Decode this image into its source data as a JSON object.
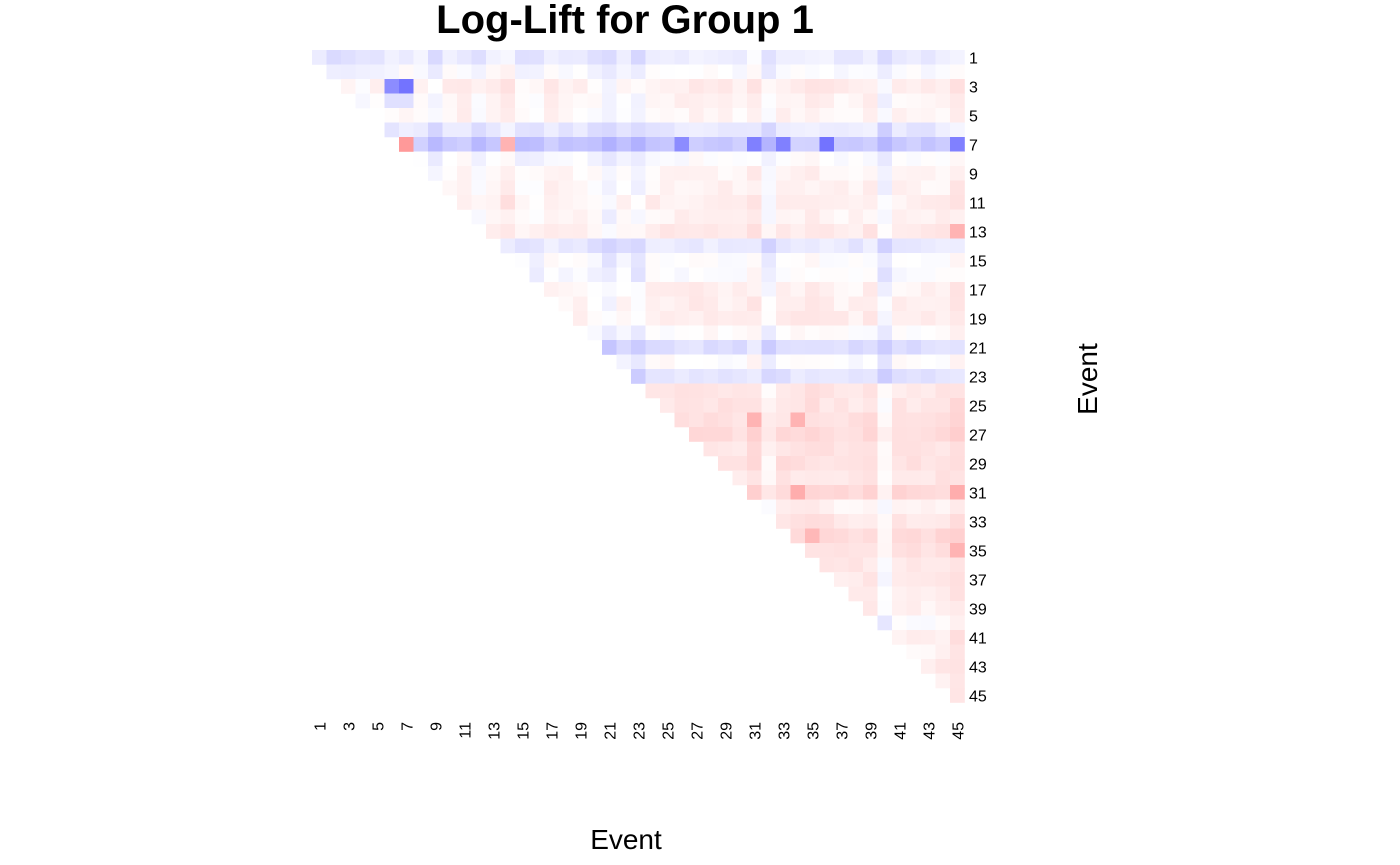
{
  "chart_data": {
    "type": "heatmap",
    "title": "Log-Lift for Group 1",
    "xlabel": "Event",
    "ylabel": "Event",
    "x_tick_labels": [
      "1",
      "3",
      "5",
      "7",
      "9",
      "11",
      "13",
      "15",
      "17",
      "19",
      "21",
      "23",
      "25",
      "27",
      "29",
      "31",
      "33",
      "35",
      "37",
      "39",
      "41",
      "43",
      "45"
    ],
    "y_tick_labels": [
      "1",
      "3",
      "5",
      "7",
      "9",
      "11",
      "13",
      "15",
      "17",
      "19",
      "21",
      "23",
      "25",
      "27",
      "29",
      "31",
      "33",
      "35",
      "37",
      "39",
      "41",
      "43",
      "45"
    ],
    "n_events": 45,
    "shape": "upper-triangle",
    "colors": {
      "negative": "#0000ff",
      "positive": "#ff0000",
      "neutral": "#ffffff"
    },
    "value_scale": "log-lift; blue = negative, red = positive, values normalized to [-1, 1]",
    "row_bias": {
      "1": -0.15,
      "2": -0.05,
      "3": 0.08,
      "4": 0.04,
      "5": 0.03,
      "6": -0.18,
      "7": -0.38,
      "8": -0.05,
      "9": 0.03,
      "10": 0.04,
      "11": 0.07,
      "12": 0.04,
      "13": 0.1,
      "14": -0.18,
      "15": -0.04,
      "16": -0.05,
      "17": 0.05,
      "18": 0.06,
      "19": 0.08,
      "20": -0.03,
      "21": -0.25,
      "22": -0.03,
      "23": -0.22,
      "24": 0.12,
      "25": 0.13,
      "26": 0.16,
      "27": 0.2,
      "28": 0.13,
      "29": 0.16,
      "30": 0.12,
      "31": 0.22,
      "32": 0.05,
      "33": 0.12,
      "34": 0.22,
      "35": 0.16,
      "36": 0.12,
      "37": 0.1,
      "38": 0.08,
      "39": 0.06,
      "40": -0.05,
      "41": 0.08,
      "42": 0.05,
      "43": 0.08,
      "44": 0.06,
      "45": 0.05
    },
    "col_bias": {
      "1": 0.0,
      "2": -0.05,
      "3": -0.05,
      "4": -0.05,
      "5": 0.0,
      "6": 0.03,
      "7": 0.05,
      "8": 0.04,
      "9": -0.08,
      "10": 0.03,
      "11": 0.05,
      "12": -0.04,
      "13": 0.05,
      "14": 0.1,
      "15": -0.02,
      "16": -0.04,
      "17": 0.04,
      "18": 0.02,
      "19": 0.02,
      "20": -0.02,
      "21": -0.12,
      "22": 0.0,
      "23": -0.1,
      "24": 0.03,
      "25": 0.04,
      "26": 0.04,
      "27": 0.06,
      "28": 0.05,
      "29": 0.04,
      "30": 0.03,
      "31": 0.08,
      "32": -0.08,
      "33": 0.04,
      "34": 0.05,
      "35": 0.07,
      "36": 0.05,
      "37": 0.03,
      "38": 0.02,
      "39": 0.05,
      "40": -0.12,
      "41": 0.03,
      "42": 0.03,
      "43": 0.02,
      "44": 0.04,
      "45": 0.1
    },
    "highlight_cells": [
      {
        "row": 3,
        "col": 6,
        "value": -0.45
      },
      {
        "row": 3,
        "col": 7,
        "value": -0.55
      },
      {
        "row": 4,
        "col": 6,
        "value": -0.12
      },
      {
        "row": 4,
        "col": 7,
        "value": -0.12
      },
      {
        "row": 7,
        "col": 7,
        "value": 0.4
      },
      {
        "row": 7,
        "col": 14,
        "value": 0.3
      },
      {
        "row": 7,
        "col": 26,
        "value": -0.45
      },
      {
        "row": 7,
        "col": 31,
        "value": -0.5
      },
      {
        "row": 7,
        "col": 33,
        "value": -0.5
      },
      {
        "row": 7,
        "col": 36,
        "value": -0.55
      },
      {
        "row": 7,
        "col": 45,
        "value": -0.5
      },
      {
        "row": 13,
        "col": 45,
        "value": 0.3
      },
      {
        "row": 26,
        "col": 31,
        "value": 0.3
      },
      {
        "row": 26,
        "col": 34,
        "value": 0.3
      },
      {
        "row": 31,
        "col": 34,
        "value": 0.32
      },
      {
        "row": 31,
        "col": 45,
        "value": 0.32
      },
      {
        "row": 34,
        "col": 35,
        "value": 0.28
      },
      {
        "row": 35,
        "col": 45,
        "value": 0.3
      }
    ]
  }
}
